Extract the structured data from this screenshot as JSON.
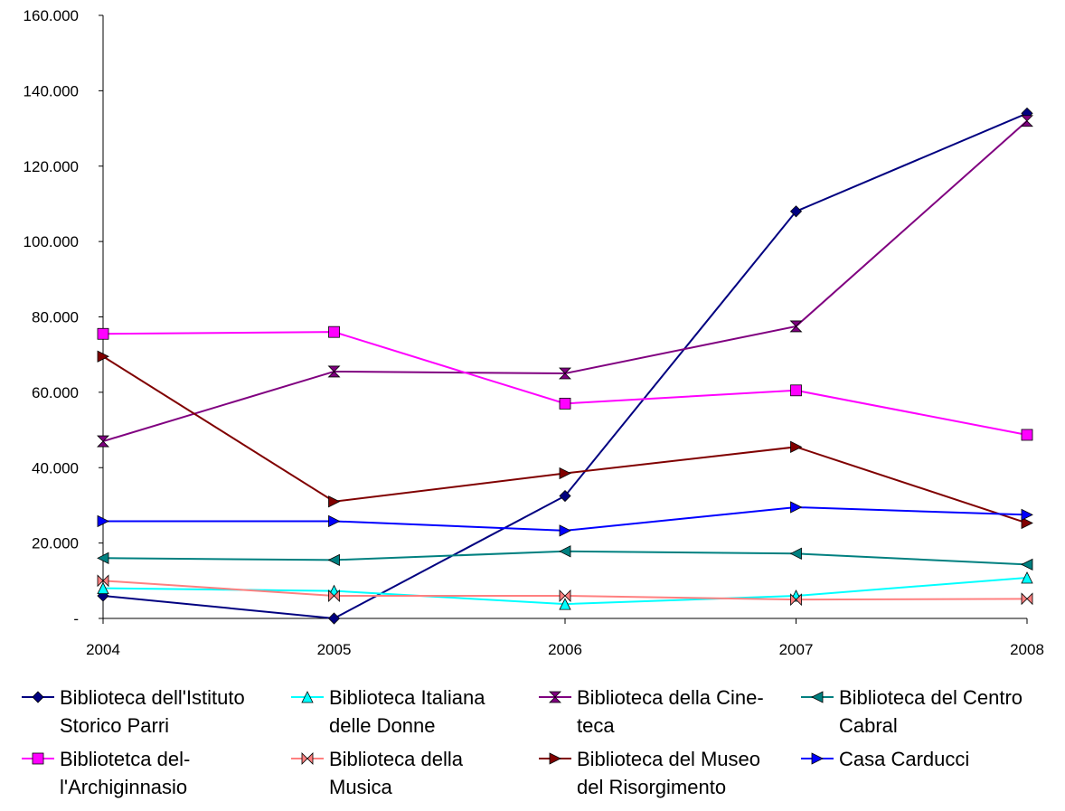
{
  "chart_data": {
    "type": "line",
    "title": "",
    "xlabel": "",
    "ylabel": "",
    "categories": [
      "2004",
      "2005",
      "2006",
      "2007",
      "2008"
    ],
    "ylim": [
      0,
      160000
    ],
    "yticks": [
      0,
      20000,
      40000,
      60000,
      80000,
      100000,
      120000,
      140000,
      160000
    ],
    "ytick_labels": [
      "-",
      "20.000",
      "40.000",
      "60.000",
      "80.000",
      "100.000",
      "120.000",
      "140.000",
      "160.000"
    ],
    "grid": false,
    "legend_position": "bottom",
    "series": [
      {
        "name": "Biblioteca dell'Istituto\nStorico Parri",
        "color": "#000080",
        "marker": "diamond",
        "values": [
          6000,
          0,
          32500,
          108000,
          134000
        ]
      },
      {
        "name": "Biblioteca Italiana\ndelle Donne",
        "color": "#00FFFF",
        "marker": "triangle",
        "values": [
          8000,
          7300,
          3800,
          6000,
          10800
        ]
      },
      {
        "name": "Biblioteca della Cine-\nteca",
        "color": "#800080",
        "marker": "hourglass",
        "values": [
          47000,
          65500,
          65000,
          77500,
          132000
        ]
      },
      {
        "name": "Biblioteca del Centro\nCabral",
        "color": "#008080",
        "marker": "triangle-left",
        "values": [
          16000,
          15500,
          17800,
          17200,
          14300
        ]
      },
      {
        "name": "Bibliotetca del-\nl'Archiginnasio",
        "color": "#FF00FF",
        "marker": "square",
        "values": [
          75500,
          76000,
          57000,
          60500,
          48700
        ]
      },
      {
        "name": "Biblioteca della\nMusica",
        "color": "#FF8080",
        "marker": "bowtie",
        "values": [
          10000,
          6000,
          6000,
          5000,
          5200
        ]
      },
      {
        "name": "Biblioteca del Museo\ndel Risorgimento",
        "color": "#800000",
        "marker": "triangle-right",
        "values": [
          69500,
          31000,
          38500,
          45500,
          25300
        ]
      },
      {
        "name": "Casa Carducci",
        "color": "#0000FF",
        "marker": "triangle-right",
        "values": [
          25800,
          25800,
          23300,
          29500,
          27500
        ]
      }
    ]
  }
}
